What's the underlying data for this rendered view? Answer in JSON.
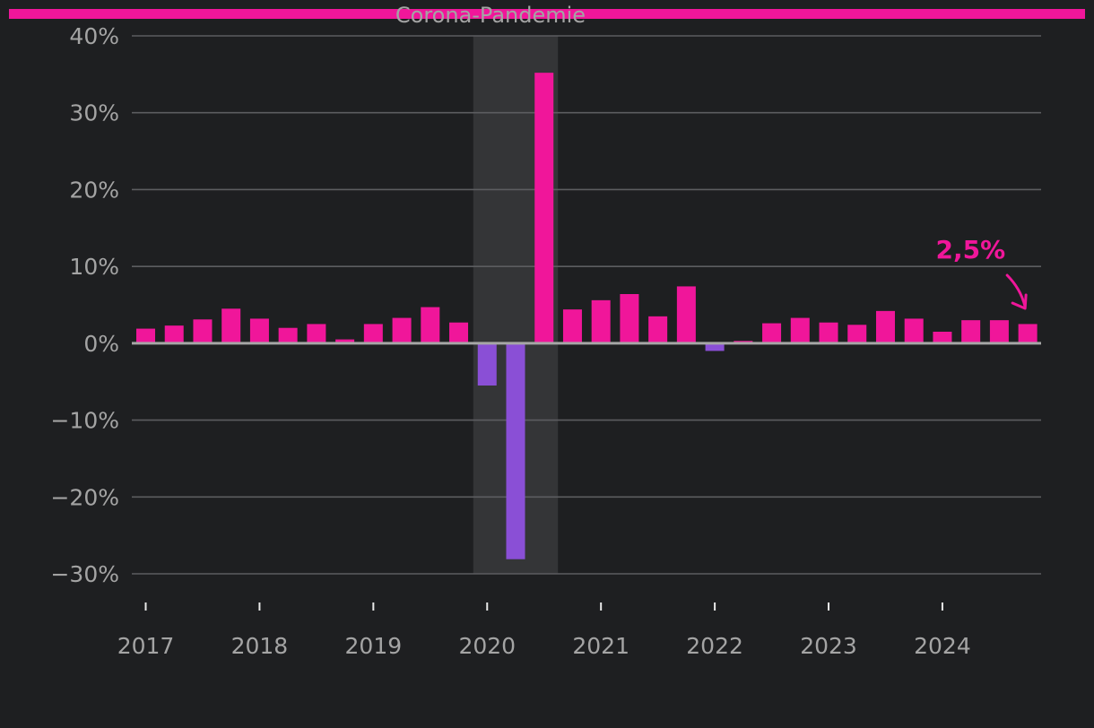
{
  "colors": {
    "background": "#1e1f21",
    "accent": "#f0169a",
    "negative": "#8a4fd6",
    "shade": "#343537",
    "grid": "#5c5d60",
    "zero_line": "#a6a6a6",
    "text": "#a4a4a4"
  },
  "chart_data": {
    "type": "bar",
    "value_unit": "%",
    "ylim": [
      -30,
      40
    ],
    "y_ticks": [
      -30,
      -20,
      -10,
      0,
      10,
      20,
      30,
      40
    ],
    "y_tick_labels": [
      "−30%",
      "−20%",
      "−10%",
      "0%",
      "10%",
      "20%",
      "30%",
      "40%"
    ],
    "x_year_labels": [
      "2017",
      "2018",
      "2019",
      "2020",
      "2021",
      "2022",
      "2023",
      "2024"
    ],
    "categories": [
      "2017 Q1",
      "2017 Q2",
      "2017 Q3",
      "2017 Q4",
      "2018 Q1",
      "2018 Q2",
      "2018 Q3",
      "2018 Q4",
      "2019 Q1",
      "2019 Q2",
      "2019 Q3",
      "2019 Q4",
      "2020 Q1",
      "2020 Q2",
      "2020 Q3",
      "2020 Q4",
      "2021 Q1",
      "2021 Q2",
      "2021 Q3",
      "2021 Q4",
      "2022 Q1",
      "2022 Q2",
      "2022 Q3",
      "2022 Q4",
      "2023 Q1",
      "2023 Q2",
      "2023 Q3",
      "2023 Q4",
      "2024 Q1",
      "2024 Q2",
      "2024 Q3",
      "2024 Q4"
    ],
    "values": [
      1.9,
      2.3,
      3.1,
      4.5,
      3.2,
      2.0,
      2.5,
      0.5,
      2.5,
      3.3,
      4.7,
      2.7,
      -5.5,
      -28.1,
      35.2,
      4.4,
      5.6,
      6.4,
      3.5,
      7.4,
      -1.0,
      0.3,
      2.6,
      3.3,
      2.7,
      2.4,
      4.2,
      3.2,
      1.5,
      3.0,
      3.0,
      2.5
    ],
    "shaded_period": {
      "label": "Corona-Pandemie",
      "from": "2020 Q1",
      "to": "2020 Q3"
    },
    "annotation": {
      "text": "2,5%",
      "target": "2024 Q4"
    },
    "grid": true,
    "legend": "none"
  }
}
